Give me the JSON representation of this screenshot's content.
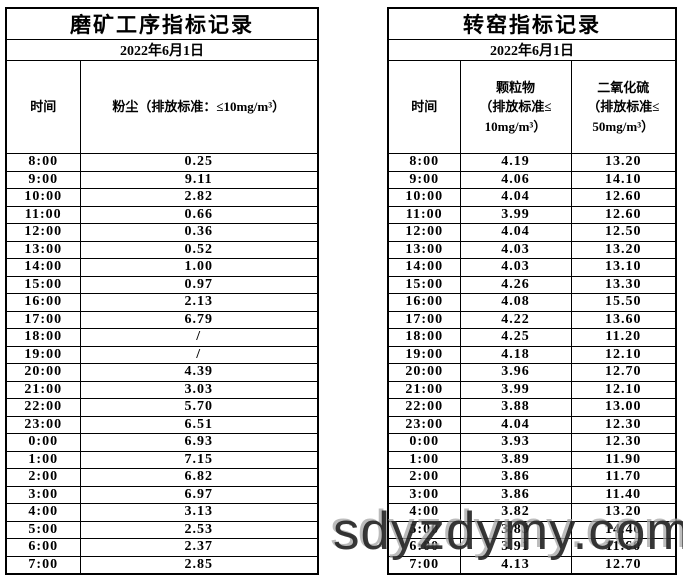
{
  "left_table": {
    "title": "磨矿工序指标记录",
    "date": "2022年6月1日",
    "columns": [
      "时间",
      "粉尘（排放标准：≤10mg/m³）"
    ],
    "rows": [
      [
        "8:00",
        "0.25"
      ],
      [
        "9:00",
        "9.11"
      ],
      [
        "10:00",
        "2.82"
      ],
      [
        "11:00",
        "0.66"
      ],
      [
        "12:00",
        "0.36"
      ],
      [
        "13:00",
        "0.52"
      ],
      [
        "14:00",
        "1.00"
      ],
      [
        "15:00",
        "0.97"
      ],
      [
        "16:00",
        "2.13"
      ],
      [
        "17:00",
        "6.79"
      ],
      [
        "18:00",
        "/"
      ],
      [
        "19:00",
        "/"
      ],
      [
        "20:00",
        "4.39"
      ],
      [
        "21:00",
        "3.03"
      ],
      [
        "22:00",
        "5.70"
      ],
      [
        "23:00",
        "6.51"
      ],
      [
        "0:00",
        "6.93"
      ],
      [
        "1:00",
        "7.15"
      ],
      [
        "2:00",
        "6.82"
      ],
      [
        "3:00",
        "6.97"
      ],
      [
        "4:00",
        "3.13"
      ],
      [
        "5:00",
        "2.53"
      ],
      [
        "6:00",
        "2.37"
      ],
      [
        "7:00",
        "2.85"
      ]
    ]
  },
  "right_table": {
    "title": "转窑指标记录",
    "date": "2022年6月1日",
    "columns": [
      "时间",
      "颗粒物\n（排放标准≤\n10mg/m³）",
      "二氧化硫\n（排放标准≤\n50mg/m³）"
    ],
    "rows": [
      [
        "8:00",
        "4.19",
        "13.20"
      ],
      [
        "9:00",
        "4.06",
        "14.10"
      ],
      [
        "10:00",
        "4.04",
        "12.60"
      ],
      [
        "11:00",
        "3.99",
        "12.60"
      ],
      [
        "12:00",
        "4.04",
        "12.50"
      ],
      [
        "13:00",
        "4.03",
        "13.20"
      ],
      [
        "14:00",
        "4.03",
        "13.10"
      ],
      [
        "15:00",
        "4.26",
        "13.30"
      ],
      [
        "16:00",
        "4.08",
        "15.50"
      ],
      [
        "17:00",
        "4.22",
        "13.60"
      ],
      [
        "18:00",
        "4.25",
        "11.20"
      ],
      [
        "19:00",
        "4.18",
        "12.10"
      ],
      [
        "20:00",
        "3.96",
        "12.70"
      ],
      [
        "21:00",
        "3.99",
        "12.10"
      ],
      [
        "22:00",
        "3.88",
        "13.00"
      ],
      [
        "23:00",
        "4.04",
        "12.30"
      ],
      [
        "0:00",
        "3.93",
        "12.30"
      ],
      [
        "1:00",
        "3.89",
        "11.90"
      ],
      [
        "2:00",
        "3.86",
        "11.70"
      ],
      [
        "3:00",
        "3.86",
        "11.40"
      ],
      [
        "4:00",
        "3.82",
        "13.20"
      ],
      [
        "5:00",
        "3.83",
        "14.40"
      ],
      [
        "6:00",
        "3.91",
        "11.60"
      ],
      [
        "7:00",
        "4.13",
        "12.70"
      ]
    ]
  },
  "watermark": {
    "text": "sdyzdymy.com"
  }
}
